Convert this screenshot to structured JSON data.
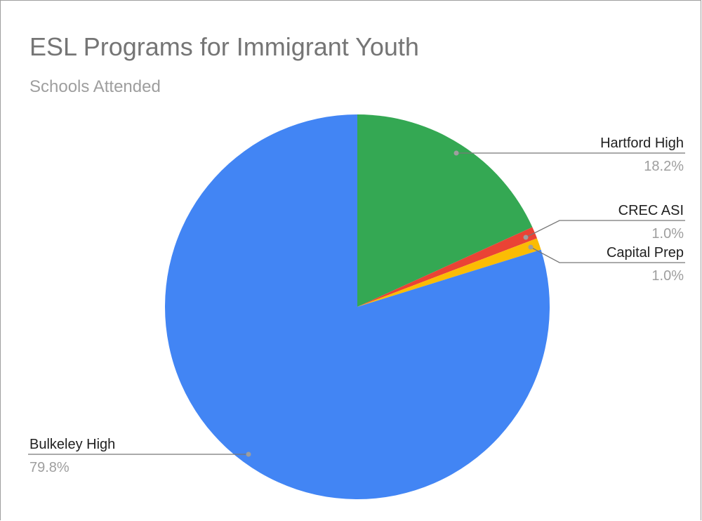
{
  "chart": {
    "title": "ESL Programs for Immigrant Youth",
    "subtitle": "Schools Attended"
  },
  "chart_data": {
    "type": "pie",
    "title": "ESL Programs for Immigrant Youth",
    "subtitle": "Schools Attended",
    "slices": [
      {
        "label": "Hartford High",
        "percent": 18.2,
        "percent_label": "18.2%",
        "color": "#34a853"
      },
      {
        "label": "CREC ASI",
        "percent": 1.0,
        "percent_label": "1.0%",
        "color": "#ea4335"
      },
      {
        "label": "Capital Prep",
        "percent": 1.0,
        "percent_label": "1.0%",
        "color": "#fbbc04"
      },
      {
        "label": "Bulkeley High",
        "percent": 79.8,
        "percent_label": "79.8%",
        "color": "#4285f4"
      }
    ],
    "start_angle": "12 o'clock",
    "direction": "clockwise",
    "legend": "labeled"
  }
}
